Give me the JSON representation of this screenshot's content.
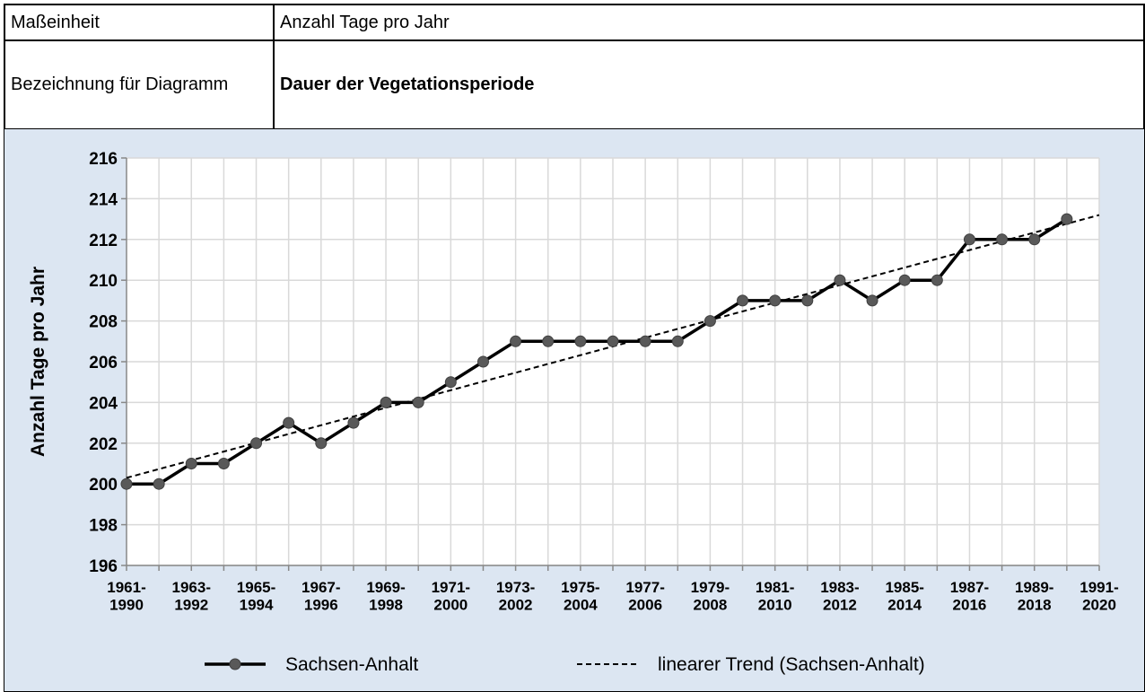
{
  "table": {
    "rows": [
      [
        "Maßeinheit",
        "Anzahl Tage pro Jahr"
      ],
      [
        "Bezeichnung für Diagramm",
        "Dauer der Vegetationsperiode"
      ]
    ]
  },
  "chart_data": {
    "type": "line",
    "y_label": "Anzahl Tage pro Jahr",
    "categories": [
      "1961-\n1990",
      null,
      "1963-\n1992",
      null,
      "1965-\n1994",
      null,
      "1967-\n1996",
      null,
      "1969-\n1998",
      null,
      "1971-\n2000",
      null,
      "1973-\n2002",
      null,
      "1975-\n2004",
      null,
      "1977-\n2006",
      null,
      "1979-\n2008",
      null,
      "1981-\n2010",
      null,
      "1983-\n2012",
      null,
      "1985-\n2014",
      null,
      "1987-\n2016",
      null,
      "1989-\n2018",
      null,
      "1991-\n2020"
    ],
    "series": [
      {
        "name": "Sachsen-Anhalt",
        "color": "#000000",
        "marker_color": "#595959",
        "dashed": false,
        "values": [
          200,
          200,
          201,
          201,
          202,
          203,
          202,
          203,
          204,
          204,
          205,
          206,
          207,
          207,
          207,
          207,
          207,
          207,
          208,
          209,
          209,
          209,
          210,
          209,
          210,
          210,
          212,
          212,
          212,
          213,
          null
        ]
      },
      {
        "name": "linearer Trend (Sachsen-Anhalt)",
        "color": "#000000",
        "dashed": true,
        "values": [
          200.3,
          200.73,
          201.16,
          201.59,
          202.02,
          202.45,
          202.88,
          203.31,
          203.74,
          204.17,
          204.6,
          205.03,
          205.46,
          205.89,
          206.32,
          206.75,
          207.18,
          207.61,
          208.04,
          208.47,
          208.9,
          209.33,
          209.76,
          210.19,
          210.62,
          211.05,
          211.48,
          211.91,
          212.34,
          212.77,
          213.2
        ]
      }
    ],
    "ylim": [
      196,
      216
    ],
    "yticks": [
      196,
      198,
      200,
      202,
      204,
      206,
      208,
      210,
      212,
      214,
      216
    ],
    "grid": true,
    "legend": "bottom",
    "background": "#dce6f2"
  }
}
